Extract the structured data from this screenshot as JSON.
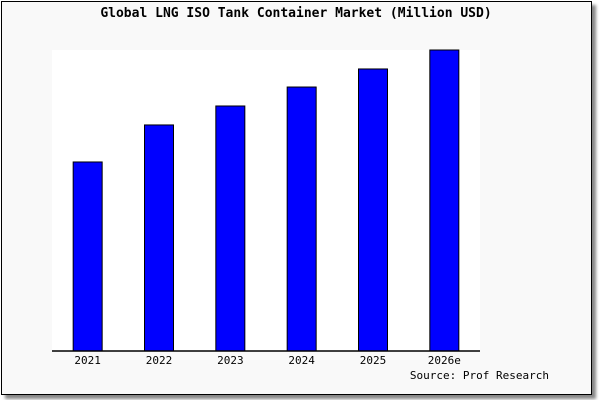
{
  "chart_data": {
    "type": "bar",
    "title": "Global LNG ISO Tank Container Market (Million USD)",
    "categories": [
      "2021",
      "2022",
      "2023",
      "2024",
      "2025",
      "2026e"
    ],
    "values": [
      62.8,
      75.1,
      81.4,
      87.7,
      93.7,
      100
    ],
    "ylim": [
      0,
      100
    ],
    "xlabel": "",
    "ylabel": "",
    "grid": false,
    "source": "Source: Prof Research",
    "colors": {
      "bar": "#0000ff",
      "bar_outline": "#000000",
      "plot_bg": "#ffffff",
      "page_bg": "#f9f9f9"
    }
  }
}
